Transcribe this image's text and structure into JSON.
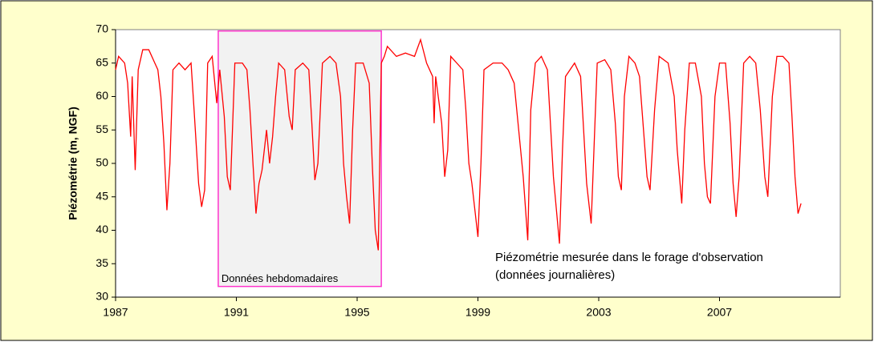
{
  "chart_data": {
    "type": "line",
    "ylabel": "Piézométrie (m, NGF)",
    "xlim": [
      1987,
      2011
    ],
    "xticks": [
      1987,
      1991,
      1995,
      1999,
      2003,
      2007
    ],
    "ylim": [
      30,
      70
    ],
    "yticks": [
      30,
      35,
      40,
      45,
      50,
      55,
      60,
      65,
      70
    ],
    "grid": false,
    "region": {
      "label": "Données hebdomadaires",
      "x": [
        1990.4,
        1995.8
      ],
      "y": [
        31.6,
        69.8
      ],
      "color": "#ff33cc"
    },
    "annotation": [
      "Piézométrie mesurée dans le forage d'observation",
      "(données journalières)"
    ],
    "series": [
      {
        "color": "#ff0000",
        "x": [
          1987.0,
          1987.1,
          1987.3,
          1987.4,
          1987.5,
          1987.55,
          1987.65,
          1987.75,
          1987.9,
          1988.1,
          1988.3,
          1988.4,
          1988.5,
          1988.6,
          1988.7,
          1988.8,
          1988.9,
          1989.1,
          1989.3,
          1989.5,
          1989.6,
          1989.75,
          1989.85,
          1989.95,
          1990.05,
          1990.2,
          1990.35,
          1990.45,
          1990.6,
          1990.7,
          1990.8,
          1990.95,
          1991.2,
          1991.35,
          1991.45,
          1991.55,
          1991.65,
          1991.75,
          1991.85,
          1992.0,
          1992.1,
          1992.2,
          1992.3,
          1992.4,
          1992.6,
          1992.75,
          1992.85,
          1992.95,
          1993.2,
          1993.4,
          1993.5,
          1993.6,
          1993.7,
          1993.85,
          1994.1,
          1994.3,
          1994.45,
          1994.55,
          1994.65,
          1994.75,
          1994.85,
          1994.95,
          1995.2,
          1995.4,
          1995.5,
          1995.6,
          1995.7,
          1995.8,
          1995.9,
          1996.0,
          1996.3,
          1996.6,
          1996.9,
          1997.1,
          1997.3,
          1997.5,
          1997.55,
          1997.6,
          1997.8,
          1997.9,
          1998.0,
          1998.1,
          1998.3,
          1998.5,
          1998.6,
          1998.7,
          1998.8,
          1998.9,
          1999.0,
          1999.1,
          1999.2,
          1999.5,
          1999.8,
          2000.0,
          2000.2,
          2000.35,
          2000.5,
          2000.65,
          2000.75,
          2000.9,
          2001.1,
          2001.3,
          2001.4,
          2001.5,
          2001.6,
          2001.7,
          2001.8,
          2001.9,
          2002.2,
          2002.4,
          2002.5,
          2002.6,
          2002.75,
          2002.85,
          2002.95,
          2003.2,
          2003.4,
          2003.55,
          2003.65,
          2003.75,
          2003.85,
          2004.0,
          2004.2,
          2004.35,
          2004.5,
          2004.6,
          2004.7,
          2004.85,
          2005.0,
          2005.3,
          2005.5,
          2005.6,
          2005.75,
          2005.85,
          2006.0,
          2006.2,
          2006.4,
          2006.5,
          2006.6,
          2006.7,
          2006.85,
          2007.0,
          2007.2,
          2007.35,
          2007.45,
          2007.55,
          2007.65,
          2007.8,
          2008.0,
          2008.2,
          2008.35,
          2008.5,
          2008.6,
          2008.75,
          2008.9,
          2009.1,
          2009.3,
          2009.4,
          2009.5,
          2009.6,
          2009.7
        ],
        "values": [
          64,
          66,
          65,
          62,
          54,
          63,
          49,
          64,
          67,
          67,
          65,
          64,
          60,
          53,
          43,
          50,
          64,
          65,
          64,
          65,
          58,
          47,
          43.5,
          46,
          65,
          66,
          59,
          64,
          57,
          48,
          46,
          65,
          65,
          64,
          58,
          50,
          42.5,
          47,
          49,
          55,
          50,
          54,
          60,
          65,
          64,
          57,
          55,
          64,
          65,
          64,
          56,
          47.5,
          50,
          65,
          66,
          65,
          60,
          50,
          45,
          41,
          55,
          65,
          65,
          62,
          50,
          40,
          37,
          65,
          66,
          67.5,
          66,
          66.5,
          66,
          68.5,
          65,
          63,
          56,
          63,
          56,
          48,
          52,
          66,
          65,
          64,
          58,
          50,
          47,
          43,
          39,
          50,
          64,
          65,
          65,
          64,
          62,
          55,
          48,
          38.5,
          58,
          65,
          66,
          64,
          56,
          48,
          43,
          38,
          52,
          63,
          65,
          63,
          55,
          47,
          41,
          53,
          65,
          65.5,
          64,
          56,
          48,
          46,
          60,
          66,
          65,
          63,
          54,
          48,
          46,
          58,
          66,
          65,
          60,
          52,
          44,
          55,
          65,
          65,
          60,
          50,
          45,
          44,
          60,
          65,
          65,
          56,
          47,
          42,
          48,
          65,
          66,
          65,
          58,
          48,
          45,
          60,
          66,
          66,
          65,
          57,
          48,
          42.5,
          44
        ]
      }
    ]
  }
}
